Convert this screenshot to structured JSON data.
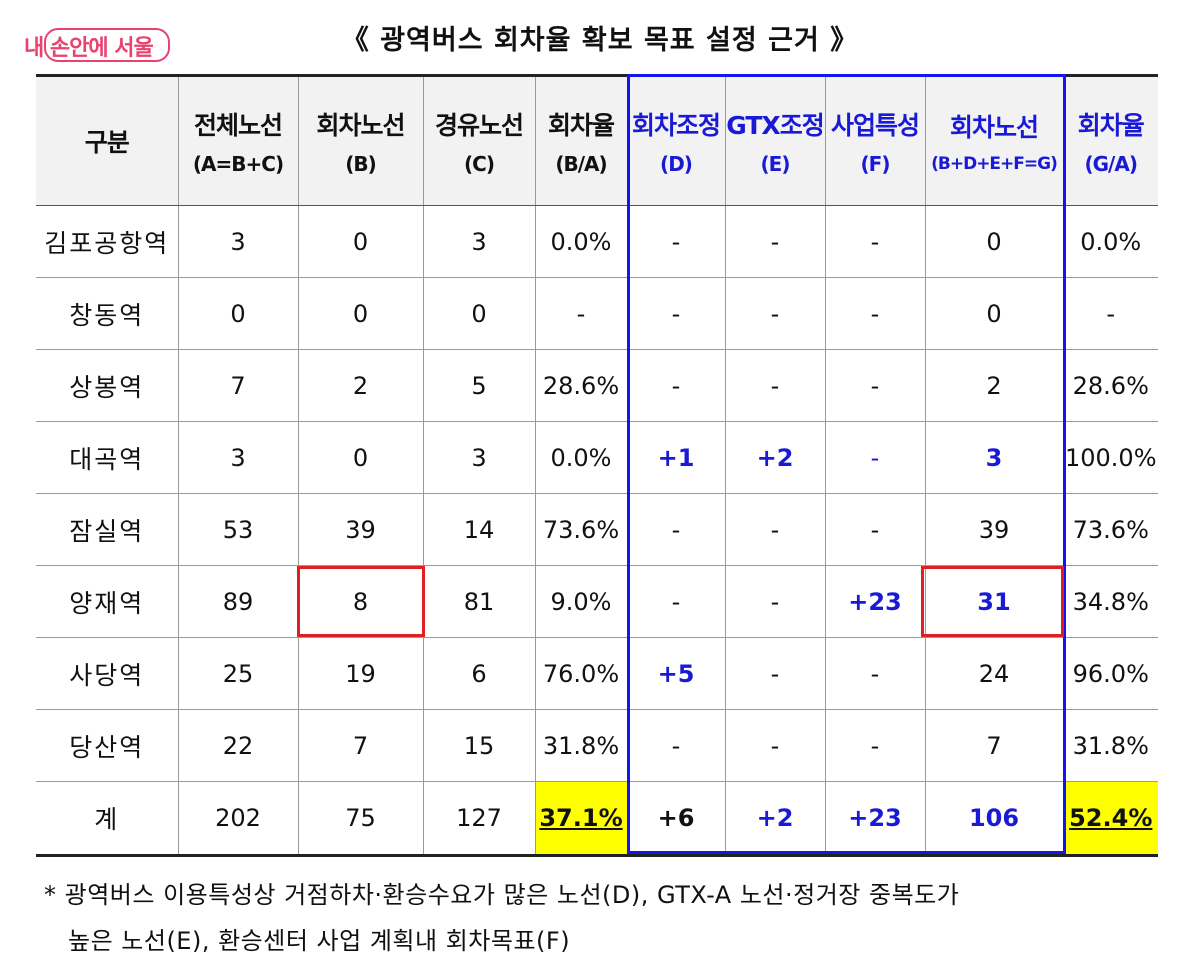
{
  "logo": {
    "text": "내 손안에 서울",
    "color": "#e8436f"
  },
  "title": "《 광역버스 회차율 확보 목표 설정 근거 》",
  "table": {
    "headers": [
      {
        "main": "구분",
        "sub": ""
      },
      {
        "main": "전체노선",
        "sub": "(A=B+C)"
      },
      {
        "main": "회차노선",
        "sub": "(B)"
      },
      {
        "main": "경유노선",
        "sub": "(C)"
      },
      {
        "main": "회차율",
        "sub": "(B/A)"
      },
      {
        "main": "회차조정",
        "sub": "(D)"
      },
      {
        "main": "GTX조정",
        "sub": "(E)"
      },
      {
        "main": "사업특성",
        "sub": "(F)"
      },
      {
        "main": "회차노선",
        "sub": "(B+D+E+F=G)"
      },
      {
        "main": "회차율",
        "sub": "(G/A)"
      }
    ],
    "rows": [
      [
        "김포공항역",
        "3",
        "0",
        "3",
        "0.0%",
        "-",
        "-",
        "-",
        "0",
        "0.0%"
      ],
      [
        "창동역",
        "0",
        "0",
        "0",
        "-",
        "-",
        "-",
        "-",
        "0",
        "-"
      ],
      [
        "상봉역",
        "7",
        "2",
        "5",
        "28.6%",
        "-",
        "-",
        "-",
        "2",
        "28.6%"
      ],
      [
        "대곡역",
        "3",
        "0",
        "3",
        "0.0%",
        "+1",
        "+2",
        "-",
        "3",
        "100.0%"
      ],
      [
        "잠실역",
        "53",
        "39",
        "14",
        "73.6%",
        "-",
        "-",
        "-",
        "39",
        "73.6%"
      ],
      [
        "양재역",
        "89",
        "8",
        "81",
        "9.0%",
        "-",
        "-",
        "+23",
        "31",
        "34.8%"
      ],
      [
        "사당역",
        "25",
        "19",
        "6",
        "76.0%",
        "+5",
        "-",
        "-",
        "24",
        "96.0%"
      ],
      [
        "당산역",
        "22",
        "7",
        "15",
        "31.8%",
        "-",
        "-",
        "-",
        "7",
        "31.8%"
      ]
    ],
    "total": [
      "계",
      "202",
      "75",
      "127",
      "37.1%",
      "+6",
      "+2",
      "+23",
      "106",
      "52.4%"
    ]
  },
  "note": {
    "line1": "* 광역버스 이용특성상 거점하차·환승수요가 많은 노선(D), GTX-A 노선·정거장 중복도가",
    "line2": "높은 노선(E), 환승센터 사업 계획내 회차목표(F)"
  },
  "colors": {
    "highlight_blue": "#1a1ad6",
    "box_blue": "#1414ee",
    "box_red": "#e02020",
    "highlight_yellow": "#ffff00"
  }
}
